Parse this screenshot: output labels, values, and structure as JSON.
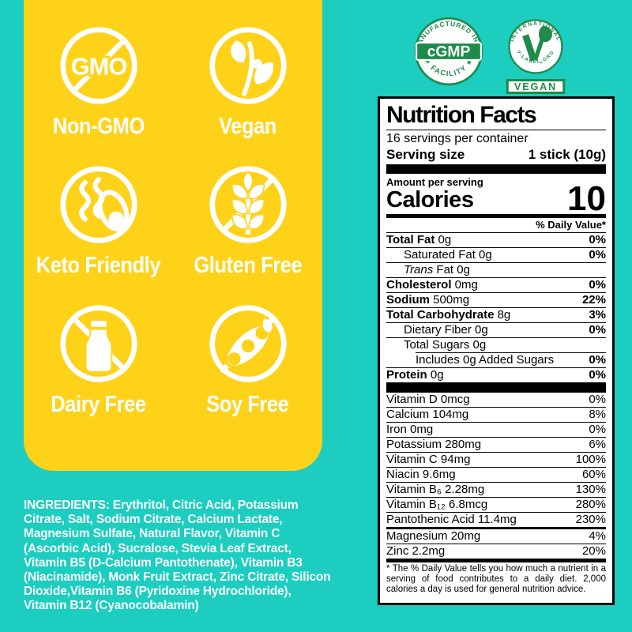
{
  "colors": {
    "teal": "#1CCDC0",
    "yellow": "#FFD21A",
    "badge_green": "#1E8B4B",
    "white": "#FFFFFF",
    "black": "#000000"
  },
  "claims": {
    "items": [
      {
        "icon": "non-gmo-icon",
        "label": "Non-GMO",
        "icon_text": "GMO"
      },
      {
        "icon": "vegan-icon",
        "label": "Vegan"
      },
      {
        "icon": "keto-icon",
        "label": "Keto Friendly"
      },
      {
        "icon": "gluten-free-icon",
        "label": "Gluten Free"
      },
      {
        "icon": "dairy-free-icon",
        "label": "Dairy Free"
      },
      {
        "icon": "soy-free-icon",
        "label": "Soy Free"
      }
    ]
  },
  "badges": {
    "cgmp": {
      "arc_top": "MANUFACTURED IN A",
      "arc_bottom": "★ FACILITY ★",
      "center": "cGMP"
    },
    "vegan": {
      "arc_top": "INTERNATIONAL",
      "arc_bottom": "V-LABEL.ORG",
      "reg": "®",
      "box": "VEGAN"
    }
  },
  "ingredients": {
    "label": "INGREDIENTS:",
    "text": " Erythritol, Citric Acid, Potassium Citrate, Salt, Sodium Citrate, Calcium Lactate, Magnesium Sulfate, Natural Flavor, Vitamin C (Ascorbic Acid), Sucralose, Stevia Leaf Extract, Vitamin B5 (D-Calcium Pantothenate), Vitamin B3 (Niacinamide), Monk Fruit Extract, Zinc Citrate, Silicon Dioxide,Vitamin B6 (Pyridoxine Hydrochloride), Vitamin B12 (Cyanocobalamin)"
  },
  "nutrition": {
    "title": "Nutrition Facts",
    "servings_per_container": "16 servings per container",
    "serving_size_label": "Serving size",
    "serving_size_value": "1 stick (10g)",
    "amount_label": "Amount per serving",
    "calories_label": "Calories",
    "calories_value": "10",
    "dv_header": "% Daily Value*",
    "main_rows": [
      {
        "label": "Total Fat",
        "amount": "0g",
        "dv": "0%",
        "bold": true
      },
      {
        "label": "Saturated Fat",
        "amount": "0g",
        "dv": "0%",
        "indent": 1
      },
      {
        "label": "Trans",
        "amount": "Fat 0g",
        "dv": "",
        "indent": 1,
        "italic": true
      },
      {
        "label": "Cholesterol",
        "amount": "0mg",
        "dv": "0%",
        "bold": true
      },
      {
        "label": "Sodium",
        "amount": "500mg",
        "dv": "22%",
        "bold": true
      },
      {
        "label": "Total Carbohydrate",
        "amount": "8g",
        "dv": "3%",
        "bold": true
      },
      {
        "label": "Dietary Fiber",
        "amount": "0g",
        "dv": "0%",
        "indent": 1
      },
      {
        "label": "Total Sugars",
        "amount": "0g",
        "dv": "",
        "indent": 1
      },
      {
        "label": "Includes 0g Added Sugars",
        "amount": "",
        "dv": "0%",
        "indent": 2
      },
      {
        "label": "Protein",
        "amount": "0g",
        "dv": "0%",
        "bold": true
      }
    ],
    "vitamin_rows": [
      {
        "label": "Vitamin D",
        "amount": "0mcg",
        "dv": "0%"
      },
      {
        "label": "Calcium",
        "amount": "104mg",
        "dv": "8%"
      },
      {
        "label": "Iron",
        "amount": "0mg",
        "dv": "0%"
      },
      {
        "label": "Potassium",
        "amount": "280mg",
        "dv": "6%"
      },
      {
        "label": "Vitamin C",
        "amount": "94mg",
        "dv": "100%"
      },
      {
        "label": "Niacin",
        "amount": "9.6mg",
        "dv": "60%"
      },
      {
        "label": "Vitamin B₆",
        "amount": "2.28mg",
        "dv": "130%"
      },
      {
        "label": "Vitamin B₁₂",
        "amount": "6.8mcg",
        "dv": "280%"
      },
      {
        "label": "Pantothenic Acid",
        "amount": "11.4mg",
        "dv": "230%"
      },
      {
        "label": "Magnesium",
        "amount": "20mg",
        "dv": "4%",
        "sep": "med"
      },
      {
        "label": "Zinc",
        "amount": "2.2mg",
        "dv": "20%"
      }
    ],
    "footnote": "* The % Daily Value tells you how much a nutrient in a serving of food contributes to a daily diet. 2,000 calories a day is used for general nutrition advice."
  }
}
